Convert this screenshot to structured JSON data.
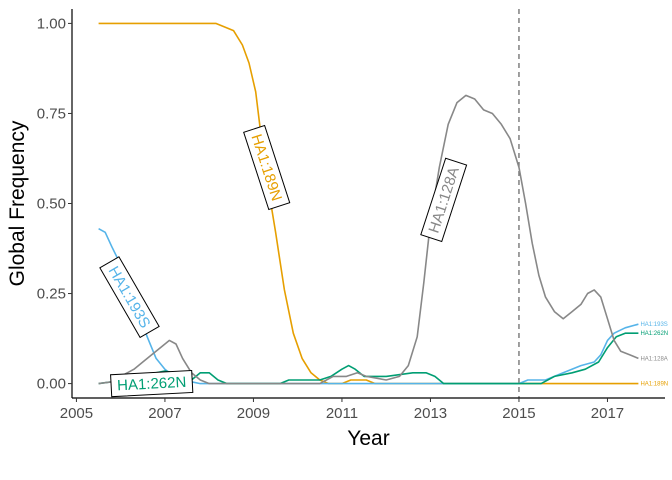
{
  "chart_data": {
    "type": "line",
    "xlabel": "Year",
    "ylabel": "Global Frequency",
    "xlim": [
      2004.9,
      2018.3
    ],
    "ylim": [
      -0.04,
      1.04
    ],
    "x_ticks": [
      2005,
      2007,
      2009,
      2011,
      2013,
      2015,
      2017
    ],
    "x_tick_labels": [
      "2005",
      "2007",
      "2009",
      "2011",
      "2013",
      "2015",
      "2017"
    ],
    "y_ticks": [
      0,
      0.25,
      0.5,
      0.75,
      1
    ],
    "y_tick_labels": [
      "0.00",
      "0.25",
      "0.50",
      "0.75",
      "1.00"
    ],
    "vline": 2015,
    "grid": false,
    "series": [
      {
        "name": "HA1:189N",
        "color": "#e69f00",
        "label": "HA1:189N",
        "end_label": "HA1:189N",
        "label_at": [
          2009.3,
          0.6
        ],
        "label_angle": 72,
        "points": [
          [
            2005.5,
            1
          ],
          [
            2006,
            1
          ],
          [
            2007,
            1
          ],
          [
            2008,
            1
          ],
          [
            2008.15,
            1
          ],
          [
            2008.35,
            0.99
          ],
          [
            2008.55,
            0.98
          ],
          [
            2008.75,
            0.94
          ],
          [
            2008.9,
            0.89
          ],
          [
            2009.05,
            0.81
          ],
          [
            2009.15,
            0.71
          ],
          [
            2009.3,
            0.57
          ],
          [
            2009.5,
            0.42
          ],
          [
            2009.7,
            0.26
          ],
          [
            2009.9,
            0.14
          ],
          [
            2010.1,
            0.07
          ],
          [
            2010.3,
            0.03
          ],
          [
            2010.5,
            0.01
          ],
          [
            2010.7,
            0
          ],
          [
            2011,
            0
          ],
          [
            2011.2,
            0.01
          ],
          [
            2011.55,
            0.01
          ],
          [
            2011.75,
            0
          ],
          [
            2012,
            0
          ],
          [
            2014,
            0
          ],
          [
            2015,
            0
          ],
          [
            2016,
            0
          ],
          [
            2017,
            0
          ],
          [
            2017.7,
            0
          ]
        ]
      },
      {
        "name": "HA1:193S",
        "color": "#56b4e9",
        "label": "HA1:193S",
        "end_label": "HA1:193S",
        "label_at": [
          2006.2,
          0.24
        ],
        "label_angle": 60,
        "points": [
          [
            2005.5,
            0.43
          ],
          [
            2005.65,
            0.42
          ],
          [
            2005.8,
            0.38
          ],
          [
            2006,
            0.33
          ],
          [
            2006.2,
            0.27
          ],
          [
            2006.4,
            0.2
          ],
          [
            2006.6,
            0.13
          ],
          [
            2006.8,
            0.07
          ],
          [
            2007,
            0.04
          ],
          [
            2007.2,
            0.02
          ],
          [
            2007.4,
            0.01
          ],
          [
            2007.6,
            0.005
          ],
          [
            2007.8,
            0
          ],
          [
            2009,
            0
          ],
          [
            2011,
            0
          ],
          [
            2012,
            0
          ],
          [
            2013,
            0
          ],
          [
            2014,
            0
          ],
          [
            2015,
            0
          ],
          [
            2015.2,
            0.01
          ],
          [
            2015.6,
            0.01
          ],
          [
            2016,
            0.03
          ],
          [
            2016.4,
            0.05
          ],
          [
            2016.7,
            0.06
          ],
          [
            2016.85,
            0.08
          ],
          [
            2017.0,
            0.12
          ],
          [
            2017.15,
            0.14
          ],
          [
            2017.4,
            0.155
          ],
          [
            2017.7,
            0.165
          ]
        ]
      },
      {
        "name": "HA1:262N",
        "color": "#009e73",
        "label": "HA1:262N",
        "end_label": "HA1:262N",
        "label_at": [
          2006.7,
          0
        ],
        "label_angle": -3,
        "points": [
          [
            2005.5,
            0
          ],
          [
            2005.8,
            0.005
          ],
          [
            2006,
            0.01
          ],
          [
            2006.2,
            0.015
          ],
          [
            2006.4,
            0.02
          ],
          [
            2006.6,
            0.025
          ],
          [
            2006.8,
            0.03
          ],
          [
            2007,
            0.035
          ],
          [
            2007.2,
            0.03
          ],
          [
            2007.4,
            0.02
          ],
          [
            2007.6,
            0.01
          ],
          [
            2007.8,
            0.03
          ],
          [
            2008,
            0.03
          ],
          [
            2008.2,
            0.01
          ],
          [
            2008.4,
            0
          ],
          [
            2009,
            0
          ],
          [
            2009.6,
            0
          ],
          [
            2009.8,
            0.01
          ],
          [
            2010.5,
            0.01
          ],
          [
            2010.75,
            0.02
          ],
          [
            2011,
            0.04
          ],
          [
            2011.15,
            0.05
          ],
          [
            2011.3,
            0.04
          ],
          [
            2011.5,
            0.02
          ],
          [
            2012,
            0.02
          ],
          [
            2012.6,
            0.03
          ],
          [
            2012.9,
            0.03
          ],
          [
            2013.1,
            0.02
          ],
          [
            2013.3,
            0
          ],
          [
            2014,
            0
          ],
          [
            2015,
            0
          ],
          [
            2015.5,
            0
          ],
          [
            2015.8,
            0.02
          ],
          [
            2016.2,
            0.03
          ],
          [
            2016.5,
            0.04
          ],
          [
            2016.8,
            0.06
          ],
          [
            2017.0,
            0.1
          ],
          [
            2017.2,
            0.13
          ],
          [
            2017.4,
            0.14
          ],
          [
            2017.7,
            0.14
          ]
        ]
      },
      {
        "name": "HA1:128A",
        "color": "#888888",
        "label": "HA1:128A",
        "end_label": "HA1:128A",
        "label_at": [
          2013.3,
          0.51
        ],
        "label_angle": -72,
        "points": [
          [
            2005.5,
            0
          ],
          [
            2005.8,
            0.005
          ],
          [
            2006,
            0.02
          ],
          [
            2006.3,
            0.04
          ],
          [
            2006.5,
            0.06
          ],
          [
            2006.7,
            0.08
          ],
          [
            2006.9,
            0.1
          ],
          [
            2007.1,
            0.12
          ],
          [
            2007.25,
            0.11
          ],
          [
            2007.4,
            0.07
          ],
          [
            2007.6,
            0.03
          ],
          [
            2007.8,
            0.01
          ],
          [
            2008,
            0
          ],
          [
            2009,
            0
          ],
          [
            2010,
            0
          ],
          [
            2010.5,
            0
          ],
          [
            2010.8,
            0.02
          ],
          [
            2011.1,
            0.02
          ],
          [
            2011.35,
            0.03
          ],
          [
            2011.55,
            0.02
          ],
          [
            2012,
            0.01
          ],
          [
            2012.3,
            0.02
          ],
          [
            2012.5,
            0.05
          ],
          [
            2012.7,
            0.13
          ],
          [
            2012.85,
            0.28
          ],
          [
            2013.0,
            0.45
          ],
          [
            2013.2,
            0.6
          ],
          [
            2013.4,
            0.72
          ],
          [
            2013.6,
            0.78
          ],
          [
            2013.8,
            0.8
          ],
          [
            2014.0,
            0.79
          ],
          [
            2014.2,
            0.76
          ],
          [
            2014.4,
            0.75
          ],
          [
            2014.6,
            0.72
          ],
          [
            2014.8,
            0.68
          ],
          [
            2015.0,
            0.6
          ],
          [
            2015.15,
            0.5
          ],
          [
            2015.3,
            0.39
          ],
          [
            2015.45,
            0.3
          ],
          [
            2015.6,
            0.24
          ],
          [
            2015.8,
            0.2
          ],
          [
            2016.0,
            0.18
          ],
          [
            2016.2,
            0.2
          ],
          [
            2016.4,
            0.22
          ],
          [
            2016.55,
            0.25
          ],
          [
            2016.7,
            0.26
          ],
          [
            2016.85,
            0.24
          ],
          [
            2017.0,
            0.18
          ],
          [
            2017.15,
            0.12
          ],
          [
            2017.3,
            0.09
          ],
          [
            2017.5,
            0.08
          ],
          [
            2017.7,
            0.07
          ]
        ]
      }
    ]
  }
}
